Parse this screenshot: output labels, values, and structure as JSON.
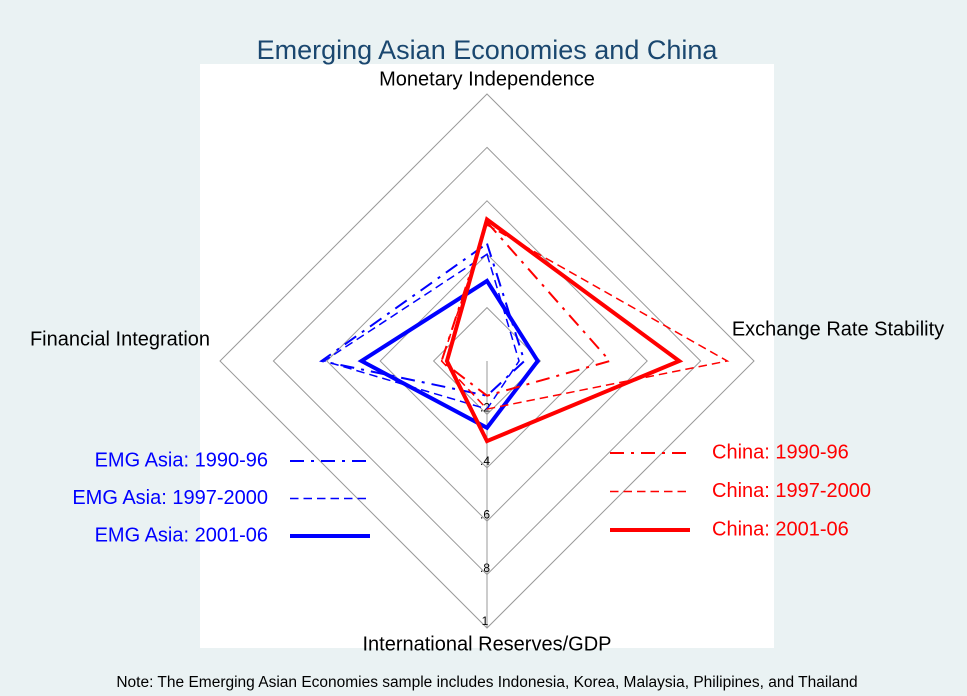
{
  "chart_data": {
    "type": "radar",
    "title": "Emerging Asian Economies and China",
    "axes": [
      "Monetary Independence",
      "Exchange Rate Stability",
      "International Reserves/GDP",
      "Financial Integration"
    ],
    "rlim": [
      0,
      1
    ],
    "rticks": [
      {
        "value": 0.2,
        "label": ".2"
      },
      {
        "value": 0.4,
        "label": ".4"
      },
      {
        "value": 0.6,
        "label": ".6"
      },
      {
        "value": 0.8,
        "label": ".8"
      },
      1
    ],
    "series": [
      {
        "name": "EMG Asia: 1990-96",
        "color": "#0000ff",
        "dash": "dashdot",
        "width": 2,
        "values": [
          0.44,
          0.14,
          0.13,
          0.62
        ]
      },
      {
        "name": "EMG Asia: 1997-2000",
        "color": "#0000ff",
        "dash": "dash",
        "width": 1.5,
        "values": [
          0.4,
          0.12,
          0.18,
          0.61
        ]
      },
      {
        "name": "EMG Asia: 2001-06",
        "color": "#0000ff",
        "dash": "solid",
        "width": 4,
        "values": [
          0.3,
          0.19,
          0.25,
          0.47
        ]
      },
      {
        "name": "China: 1990-96",
        "color": "#ff0000",
        "dash": "dashdot",
        "width": 2,
        "values": [
          0.52,
          0.46,
          0.13,
          0.17
        ]
      },
      {
        "name": "China: 1997-2000",
        "color": "#ff0000",
        "dash": "dash",
        "width": 1.5,
        "values": [
          0.51,
          0.9,
          0.18,
          0.17
        ]
      },
      {
        "name": "China: 2001-06",
        "color": "#ff0000",
        "dash": "solid",
        "width": 4,
        "values": [
          0.53,
          0.72,
          0.3,
          0.15
        ]
      }
    ],
    "note": "Note: The Emerging Asian Economies sample includes Indonesia, Korea, Malaysia, Philipines, and Thailand"
  }
}
